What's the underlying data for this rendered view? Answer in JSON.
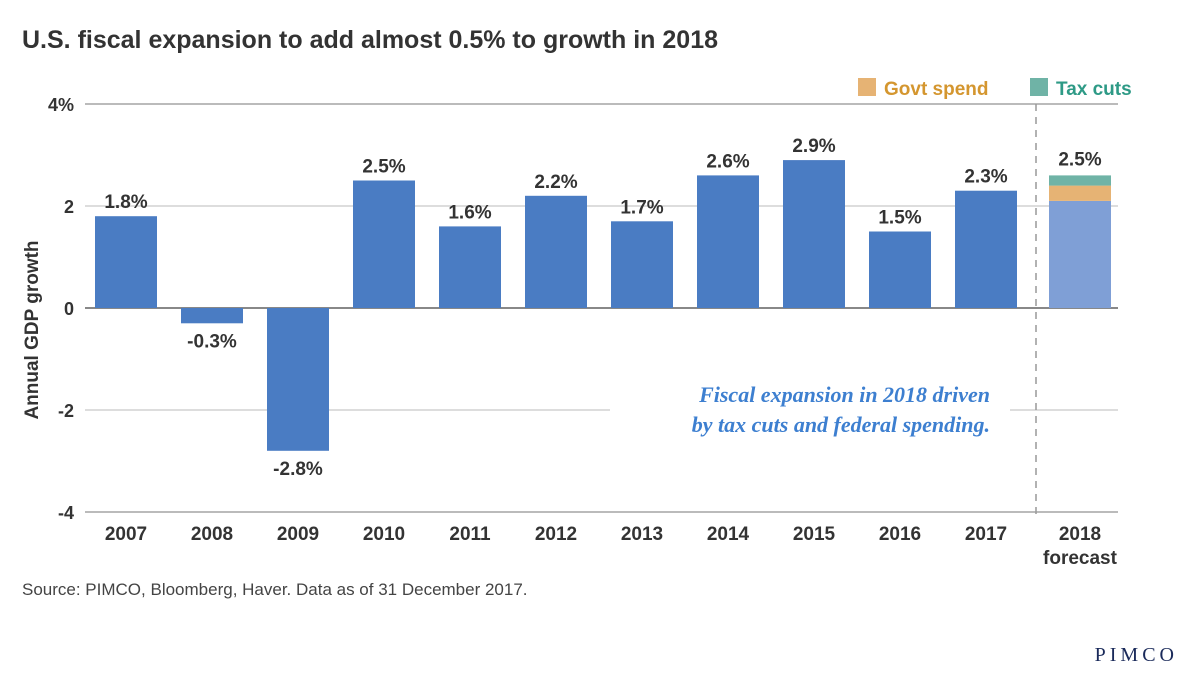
{
  "title": "U.S. fiscal expansion to add almost 0.5% to growth in 2018",
  "source": "Source: PIMCO, Bloomberg, Haver. Data as of 31 December 2017.",
  "logo": "PIMCO",
  "chart_data": {
    "type": "bar",
    "ylabel": "Annual GDP growth",
    "ylim": [
      -4,
      4
    ],
    "yticks": [
      "-4",
      "-2",
      "0",
      "2",
      "4%"
    ],
    "ytick_values": [
      -4,
      -2,
      0,
      2,
      4
    ],
    "categories": [
      "2007",
      "2008",
      "2009",
      "2010",
      "2011",
      "2012",
      "2013",
      "2014",
      "2015",
      "2016",
      "2017"
    ],
    "values": [
      1.8,
      -0.3,
      -2.8,
      2.5,
      1.6,
      2.2,
      1.7,
      2.6,
      2.9,
      1.5,
      2.3
    ],
    "labels": [
      "1.8%",
      "-0.3%",
      "-2.8%",
      "2.5%",
      "1.6%",
      "2.2%",
      "1.7%",
      "2.6%",
      "2.9%",
      "1.5%",
      "2.3%"
    ],
    "forecast": {
      "category": "2018",
      "sublabel": "forecast",
      "label": "2.5%",
      "stack": [
        {
          "name": "Base",
          "value": 2.1,
          "color": "#7f9fd6"
        },
        {
          "name": "Govt spend",
          "value": 0.3,
          "color": "#e6b374"
        },
        {
          "name": "Tax cuts",
          "value": 0.2,
          "color": "#6fb3a6"
        }
      ]
    },
    "legend": [
      {
        "name": "Govt spend",
        "color": "#e6b374",
        "text_color": "#d4962f"
      },
      {
        "name": "Tax cuts",
        "color": "#6fb3a6",
        "text_color": "#2e9a86"
      }
    ],
    "legend_position": "top-right",
    "bar_color": "#4a7cc3",
    "annotation": [
      "Fiscal expansion in 2018 driven",
      "by tax cuts and federal spending."
    ],
    "grid": true
  }
}
